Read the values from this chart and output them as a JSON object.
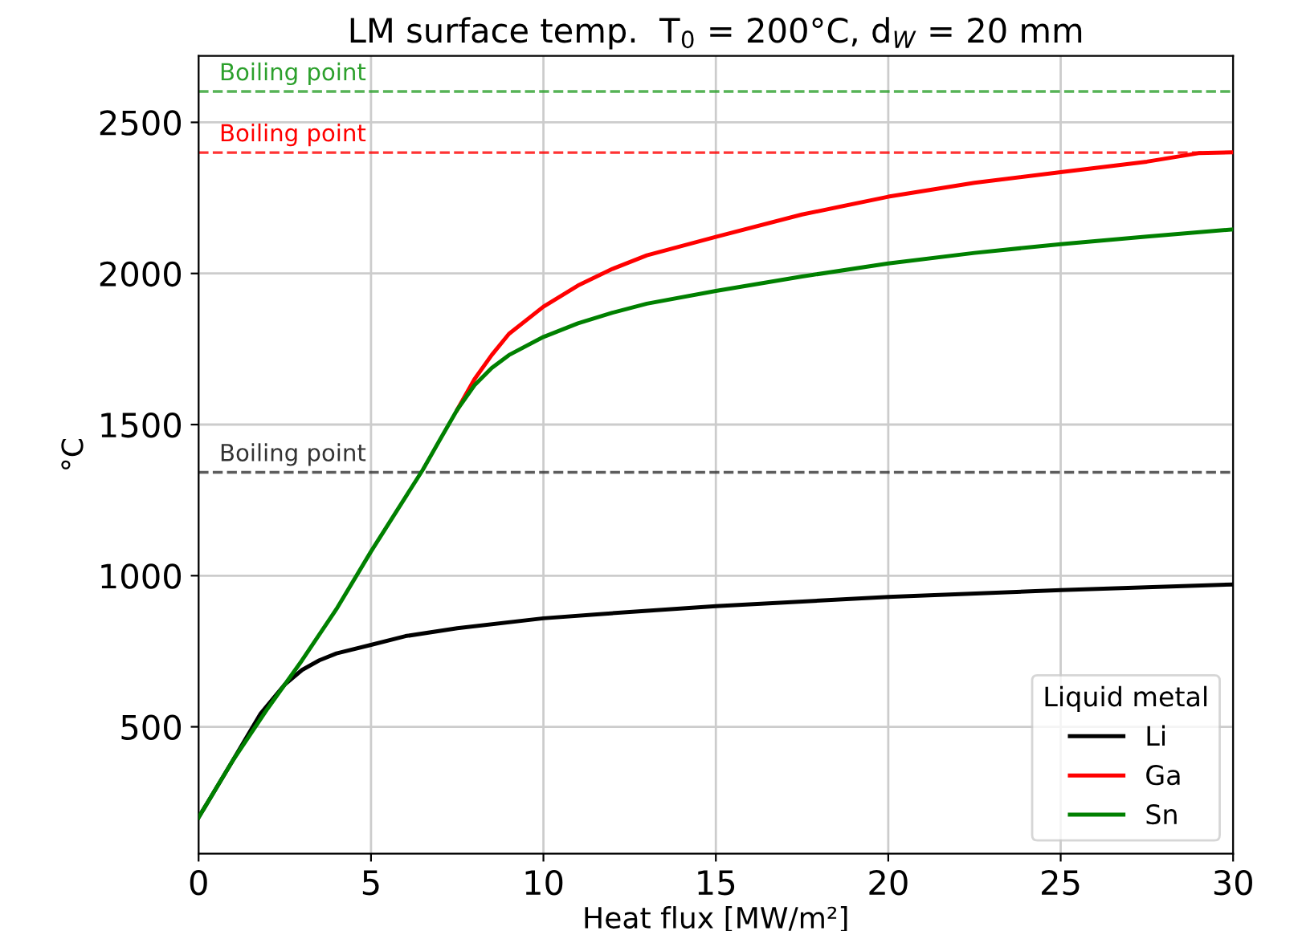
{
  "chart_data": {
    "type": "line",
    "title": "LM surface temp.  T$_{0}$ = 200°C, d$_{W}$ = 20 mm",
    "xlabel": "Heat flux [MW/m²]",
    "ylabel": "°C",
    "legend_title": "Liquid metal",
    "legend": "bottom right",
    "grid": true,
    "line_style": "solid",
    "xlim": [
      0,
      30
    ],
    "ylim": [
      80,
      2720
    ],
    "xticks": [
      0,
      5,
      10,
      15,
      20,
      25,
      30
    ],
    "yticks": [
      500,
      1000,
      1500,
      2000,
      2500
    ],
    "series": [
      {
        "name": "Li",
        "color": "#000000",
        "x": [
          0,
          1,
          1.8,
          2.5,
          3,
          3.5,
          4,
          5,
          6,
          7.5,
          10,
          12.5,
          15,
          20,
          25,
          30
        ],
        "values": [
          200,
          390,
          544,
          640,
          688,
          720,
          743,
          771,
          800,
          826,
          859,
          880,
          899,
          930,
          952,
          971
        ]
      },
      {
        "name": "Ga",
        "color": "#ff0000",
        "x": [
          7.5,
          8,
          8.5,
          9,
          10,
          11,
          12,
          13,
          15,
          17.5,
          20,
          22.5,
          25,
          27.5,
          29,
          30
        ],
        "values": [
          1549,
          1650,
          1730,
          1800,
          1890,
          1960,
          2015,
          2060,
          2121,
          2195,
          2254,
          2300,
          2335,
          2370,
          2398,
          2401
        ]
      },
      {
        "name": "Sn",
        "color": "#008000",
        "x": [
          0,
          1,
          2,
          3,
          4,
          5,
          6,
          6.5,
          7,
          7.5,
          8,
          8.5,
          9,
          10,
          11,
          12,
          13,
          15,
          17.5,
          20,
          22.5,
          25,
          27.5,
          30
        ],
        "values": [
          200,
          390,
          560,
          720,
          890,
          1080,
          1260,
          1350,
          1450,
          1549,
          1630,
          1687,
          1730,
          1790,
          1835,
          1870,
          1900,
          1942,
          1990,
          2033,
          2068,
          2097,
          2122,
          2146
        ]
      }
    ],
    "ref_lines": [
      {
        "axis": "y",
        "value": 2602,
        "label": "Boiling point",
        "color": "#2ca02c",
        "line_style": "dashed"
      },
      {
        "axis": "y",
        "value": 2400,
        "label": "Boiling point",
        "color": "#ff0000",
        "line_style": "dashed"
      },
      {
        "axis": "y",
        "value": 1342,
        "label": "Boiling point",
        "color": "#333333",
        "line_style": "dashed"
      }
    ]
  }
}
